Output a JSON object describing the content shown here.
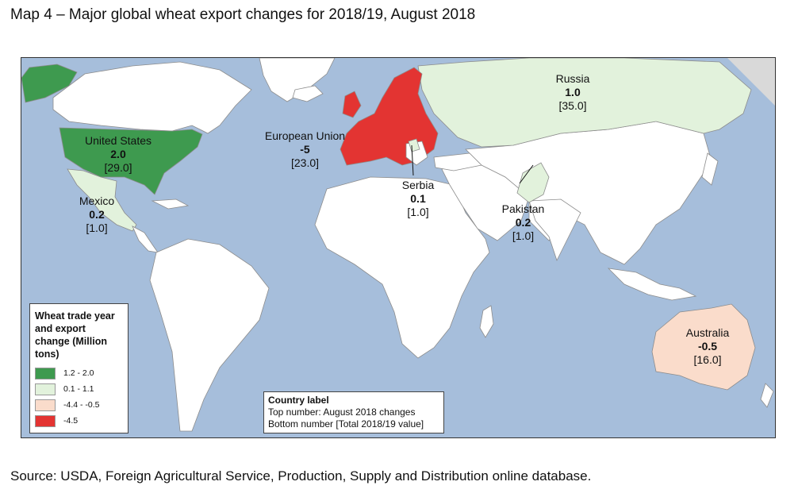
{
  "title": "Map 4 – Major global wheat export changes for 2018/19, August 2018",
  "source": "Source: USDA, Foreign Agricultural Service, Production, Supply and Distribution online database.",
  "colors": {
    "ocean": "#a6bedb",
    "land": "#ffffff",
    "border": "#8c8c8c",
    "cat_1": "#3e9a4f",
    "cat_2": "#e2f2dc",
    "cat_3": "#fadccb",
    "cat_4": "#e33432"
  },
  "legend": {
    "title": "Wheat trade year and export change (Million tons)",
    "items": [
      {
        "range": "1.2 - 2.0",
        "color": "#3e9a4f"
      },
      {
        "range": "0.1 - 1.1",
        "color": "#e2f2dc"
      },
      {
        "range": "-4.4 - -0.5",
        "color": "#fadccb"
      },
      {
        "range": "-4.5",
        "color": "#e33432"
      }
    ]
  },
  "label_box": {
    "title": "Country label",
    "line1": "Top number: August 2018 changes",
    "line2": "Bottom number [Total 2018/19 value]"
  },
  "countries": [
    {
      "name": "United States",
      "change": "2.0",
      "total": "[29.0]",
      "category": "1.2 - 2.0"
    },
    {
      "name": "Mexico",
      "change": "0.2",
      "total": "[1.0]",
      "category": "0.1 - 1.1"
    },
    {
      "name": "European Union",
      "change": "-5",
      "total": "[23.0]",
      "category": "-4.5"
    },
    {
      "name": "Serbia",
      "change": "0.1",
      "total": "[1.0]",
      "category": "0.1 - 1.1"
    },
    {
      "name": "Russia",
      "change": "1.0",
      "total": "[35.0]",
      "category": "0.1 - 1.1"
    },
    {
      "name": "Pakistan",
      "change": "0.2",
      "total": "[1.0]",
      "category": "0.1 - 1.1"
    },
    {
      "name": "Australia",
      "change": "-0.5",
      "total": "[16.0]",
      "category": "-4.4 - -0.5"
    }
  ]
}
